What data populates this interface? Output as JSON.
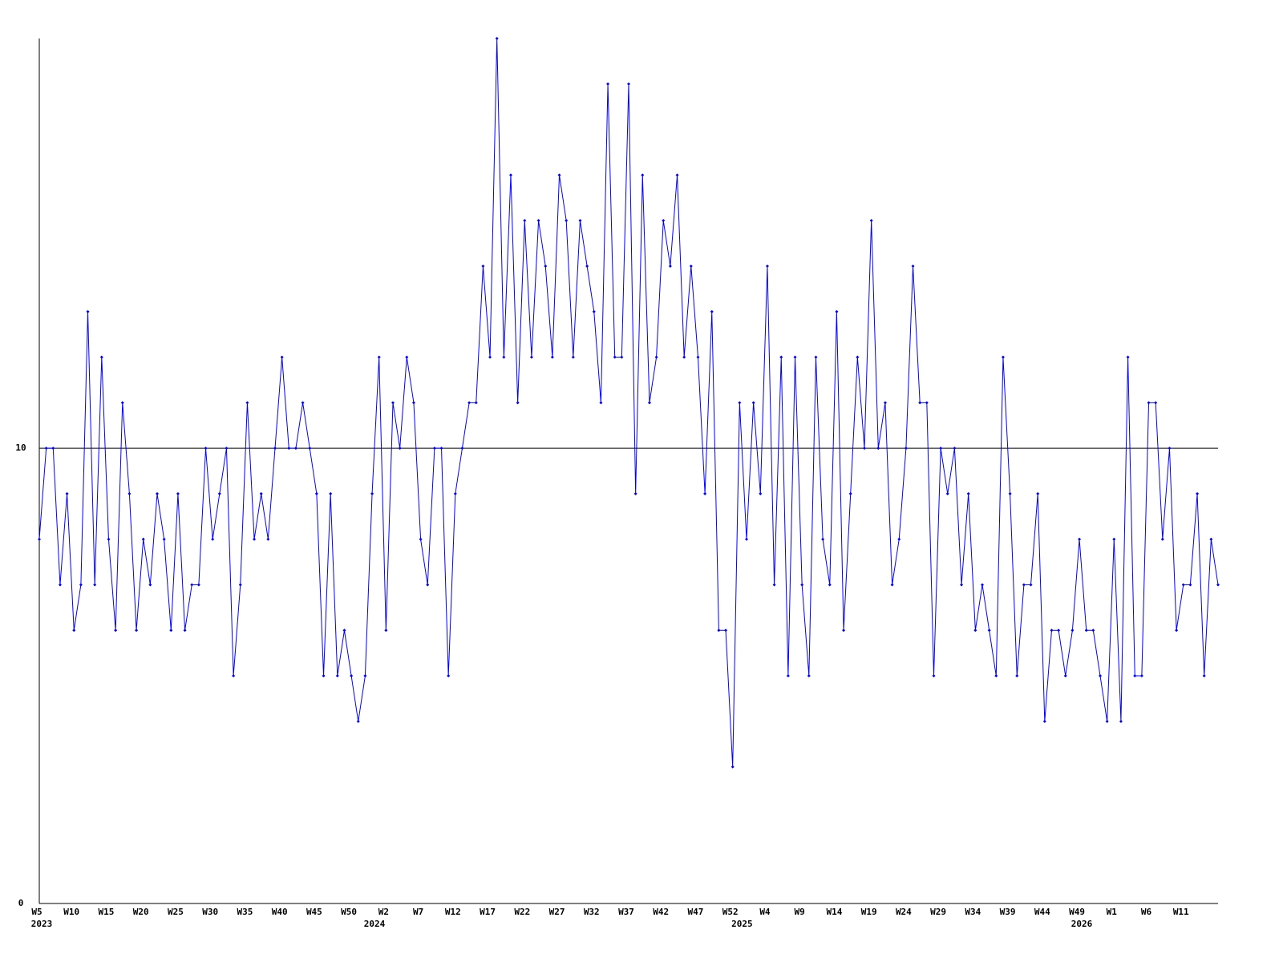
{
  "chart_data": {
    "type": "line",
    "color": "#0000ff",
    "grid": true,
    "ylim": [
      0,
      19
    ],
    "yticks": [
      0,
      10
    ],
    "categories": [
      "W5",
      null,
      null,
      null,
      null,
      "W10",
      null,
      null,
      null,
      null,
      "W15",
      null,
      null,
      null,
      null,
      "W20",
      null,
      null,
      null,
      null,
      "W25",
      null,
      null,
      null,
      null,
      "W30",
      null,
      null,
      null,
      null,
      "W35",
      null,
      null,
      null,
      null,
      "W40",
      null,
      null,
      null,
      null,
      "W45",
      null,
      null,
      null,
      null,
      "W50",
      null,
      null,
      null,
      null,
      "W2",
      null,
      null,
      null,
      null,
      "W7",
      null,
      null,
      null,
      null,
      "W12",
      null,
      null,
      null,
      null,
      "W17",
      null,
      null,
      null,
      null,
      "W22",
      null,
      null,
      null,
      null,
      "W27",
      null,
      null,
      null,
      null,
      "W32",
      null,
      null,
      null,
      null,
      "W37",
      null,
      null,
      null,
      null,
      "W42",
      null,
      null,
      null,
      null,
      "W47",
      null,
      null,
      null,
      null,
      "W52",
      null,
      null,
      null,
      null,
      "W4",
      null,
      null,
      null,
      null,
      "W9",
      null,
      null,
      null,
      null,
      "W14",
      null,
      null,
      null,
      null,
      "W19",
      null,
      null,
      null,
      null,
      "W24",
      null,
      null,
      null,
      null,
      "W29",
      null,
      null,
      null,
      null,
      "W34",
      null,
      null,
      null,
      null,
      "W39",
      null,
      null,
      null,
      null,
      "W44",
      null,
      null,
      null,
      null,
      "W49",
      null,
      null,
      null,
      null,
      "W1",
      null,
      null,
      null,
      null,
      "W6",
      null,
      null,
      null,
      null,
      "W11",
      null,
      null,
      null,
      null,
      null
    ],
    "years": [
      "2023",
      null,
      null,
      null,
      null,
      null,
      null,
      null,
      null,
      null,
      null,
      null,
      null,
      null,
      null,
      null,
      null,
      null,
      null,
      null,
      null,
      null,
      null,
      null,
      null,
      null,
      null,
      null,
      null,
      null,
      null,
      null,
      null,
      null,
      null,
      null,
      null,
      null,
      null,
      null,
      null,
      null,
      null,
      null,
      null,
      null,
      null,
      null,
      "2024",
      null,
      null,
      null,
      null,
      null,
      null,
      null,
      null,
      null,
      null,
      null,
      null,
      null,
      null,
      null,
      null,
      null,
      null,
      null,
      null,
      null,
      null,
      null,
      null,
      null,
      null,
      null,
      null,
      null,
      null,
      null,
      null,
      null,
      null,
      null,
      null,
      null,
      null,
      null,
      null,
      null,
      null,
      null,
      null,
      null,
      null,
      null,
      null,
      null,
      null,
      null,
      null,
      "2025",
      null,
      null,
      null,
      null,
      null,
      null,
      null,
      null,
      null,
      null,
      null,
      null,
      null,
      null,
      null,
      null,
      null,
      null,
      null,
      null,
      null,
      null,
      null,
      null,
      null,
      null,
      null,
      null,
      null,
      null,
      null,
      null,
      null,
      null,
      null,
      null,
      null,
      null,
      null,
      null,
      null,
      null,
      null,
      null,
      null,
      null,
      null,
      null,
      "2026",
      null,
      null,
      null,
      null,
      null,
      null,
      null,
      null,
      null,
      null,
      null,
      null,
      null,
      null,
      null,
      null
    ],
    "values": [
      8,
      10,
      10,
      7,
      9,
      6,
      7,
      13,
      7,
      12,
      8,
      6,
      11,
      9,
      6,
      8,
      7,
      9,
      8,
      6,
      9,
      6,
      7,
      7,
      10,
      8,
      9,
      10,
      5,
      7,
      11,
      8,
      9,
      8,
      10,
      12,
      10,
      10,
      11,
      10,
      9,
      5,
      9,
      5,
      6,
      5,
      4,
      5,
      9,
      12,
      6,
      11,
      10,
      12,
      11,
      8,
      7,
      10,
      10,
      5,
      9,
      10,
      11,
      11,
      14,
      12,
      19,
      12,
      16,
      11,
      15,
      12,
      15,
      14,
      12,
      16,
      15,
      12,
      15,
      14,
      13,
      11,
      18,
      12,
      12,
      18,
      9,
      16,
      11,
      12,
      15,
      14,
      16,
      12,
      14,
      12,
      9,
      13,
      6,
      6,
      3,
      11,
      8,
      11,
      9,
      14,
      7,
      12,
      5,
      12,
      7,
      5,
      12,
      8,
      7,
      13,
      6,
      9,
      12,
      10,
      15,
      10,
      11,
      7,
      8,
      10,
      14,
      11,
      11,
      5,
      10,
      9,
      10,
      7,
      9,
      6,
      7,
      6,
      5,
      12,
      9,
      5,
      7,
      7,
      9,
      4,
      6,
      6,
      5,
      6,
      8,
      6,
      6,
      5,
      4,
      8,
      4,
      12,
      5,
      5,
      11,
      11,
      8,
      10,
      6,
      7,
      7,
      9,
      5,
      8,
      7
    ]
  }
}
